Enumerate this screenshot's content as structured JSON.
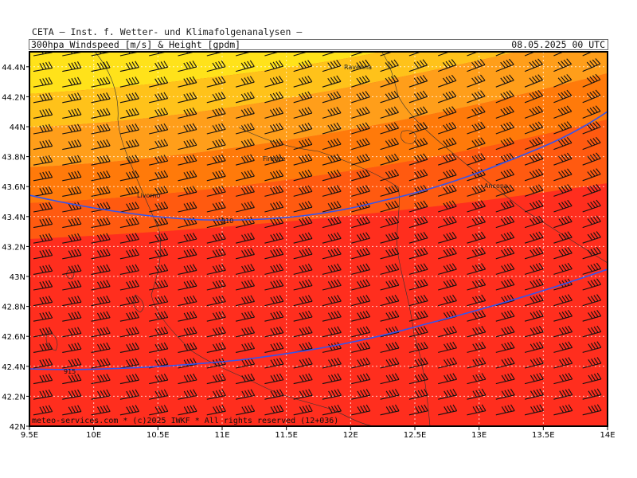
{
  "header": {
    "title": "CETA — Inst. f. Wetter- und Klimafolgenanalysen —",
    "subtitle": "300hpa_Windspeed_[m/s]_&_Height_[gpdm]",
    "date": "08.05.2025 00 UTC"
  },
  "footer": {
    "copyright": "meteo-services.com * (c)2025 IWKF * All rights reserved (12+036)"
  },
  "map": {
    "lon_range": [
      9.5,
      14.0
    ],
    "lat_range": [
      42.0,
      44.5
    ],
    "lon_ticks": [
      "9.5E",
      "10E",
      "10.5E",
      "11E",
      "11.5E",
      "12E",
      "12.5E",
      "13E",
      "13.5E",
      "14E"
    ],
    "lat_ticks": [
      "42N",
      "42.2N",
      "42.4N",
      "42.6N",
      "42.8N",
      "43N",
      "43.2N",
      "43.4N",
      "43.6N",
      "43.8N",
      "44N",
      "44.2N",
      "44.4N"
    ],
    "grid": true,
    "colors": {
      "band_1": "#ffe21a",
      "band_2": "#ffc21a",
      "band_3": "#ff9e1a",
      "band_4": "#ff7a0a",
      "band_5": "#ff5a10",
      "band_6": "#ff2e1e",
      "band_7": "#f01e32",
      "contour": "#3355ee",
      "barb": "#111111"
    },
    "cities": [
      {
        "name": "Ravenna"
      },
      {
        "name": "Firenze"
      },
      {
        "name": "Livorno"
      },
      {
        "name": "Ancona"
      }
    ],
    "height_contours": [
      {
        "label": "910"
      },
      {
        "label": "915"
      }
    ]
  }
}
